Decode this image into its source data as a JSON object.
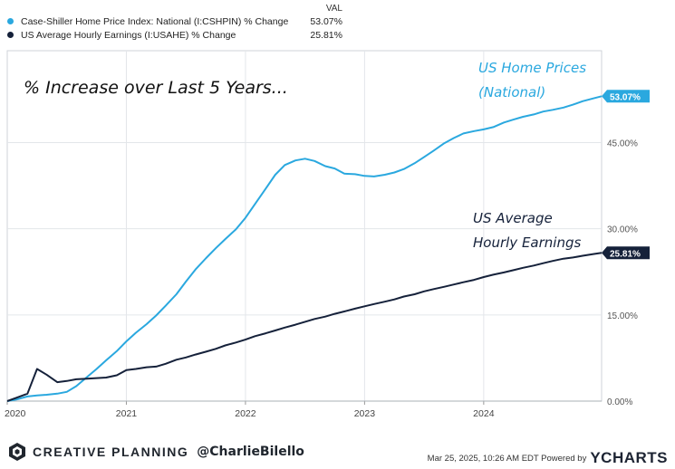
{
  "legend": {
    "header": "VAL",
    "items": [
      {
        "name": "Case-Shiller Home Price Index: National (I:CSHPIN) % Change",
        "value": "53.07%",
        "color": "#2aa8df"
      },
      {
        "name": "US Average Hourly Earnings (I:USAHE) % Change",
        "value": "25.81%",
        "color": "#15213a"
      }
    ]
  },
  "footer": {
    "brand": "CREATIVE PLANNING",
    "handle": "@CharlieBilello",
    "timestamp": "Mar 25, 2025, 10:26 AM EDT Powered by",
    "powered_logo": "YCHARTS"
  },
  "chart_data": {
    "type": "line",
    "title": "% Increase over Last 5 Years...",
    "annotations": [
      {
        "lines": [
          "US Home Prices",
          "(National)"
        ],
        "color": "#2aa8df"
      },
      {
        "lines": [
          "US Average",
          "Hourly Earnings"
        ],
        "color": "#15213a"
      }
    ],
    "x_ticks": [
      "2020",
      "2021",
      "2022",
      "2023",
      "2024"
    ],
    "x_tick_values": [
      2020.0,
      2021.0,
      2022.0,
      2023.0,
      2024.0
    ],
    "xlim": [
      2020.0,
      2024.99
    ],
    "ylim": [
      0,
      61
    ],
    "y_ticks": [
      0,
      15,
      30,
      45
    ],
    "y_tick_labels": [
      "0.00%",
      "15.00%",
      "30.00%",
      "45.00%"
    ],
    "grid": true,
    "series": [
      {
        "name": "US Home Prices (National)",
        "color": "#2aa8df",
        "end_label": "53.07%",
        "points": [
          [
            2020.0,
            0
          ],
          [
            2020.08,
            0.3
          ],
          [
            2020.17,
            0.8
          ],
          [
            2020.25,
            1.0
          ],
          [
            2020.33,
            1.1
          ],
          [
            2020.42,
            1.3
          ],
          [
            2020.5,
            1.6
          ],
          [
            2020.58,
            2.6
          ],
          [
            2020.67,
            4.2
          ],
          [
            2020.75,
            5.6
          ],
          [
            2020.83,
            7.1
          ],
          [
            2020.92,
            8.7
          ],
          [
            2021.0,
            10.4
          ],
          [
            2021.08,
            11.9
          ],
          [
            2021.17,
            13.4
          ],
          [
            2021.25,
            14.9
          ],
          [
            2021.33,
            16.6
          ],
          [
            2021.42,
            18.6
          ],
          [
            2021.5,
            20.8
          ],
          [
            2021.58,
            22.9
          ],
          [
            2021.67,
            24.9
          ],
          [
            2021.75,
            26.6
          ],
          [
            2021.83,
            28.2
          ],
          [
            2021.92,
            29.9
          ],
          [
            2022.0,
            31.9
          ],
          [
            2022.08,
            34.3
          ],
          [
            2022.17,
            37.0
          ],
          [
            2022.25,
            39.4
          ],
          [
            2022.33,
            41.1
          ],
          [
            2022.42,
            41.9
          ],
          [
            2022.5,
            42.2
          ],
          [
            2022.58,
            41.8
          ],
          [
            2022.67,
            40.9
          ],
          [
            2022.75,
            40.5
          ],
          [
            2022.83,
            39.6
          ],
          [
            2022.92,
            39.5
          ],
          [
            2023.0,
            39.2
          ],
          [
            2023.08,
            39.1
          ],
          [
            2023.17,
            39.4
          ],
          [
            2023.25,
            39.8
          ],
          [
            2023.33,
            40.4
          ],
          [
            2023.42,
            41.4
          ],
          [
            2023.5,
            42.5
          ],
          [
            2023.58,
            43.6
          ],
          [
            2023.67,
            44.9
          ],
          [
            2023.75,
            45.8
          ],
          [
            2023.83,
            46.6
          ],
          [
            2023.92,
            47.0
          ],
          [
            2024.0,
            47.3
          ],
          [
            2024.08,
            47.7
          ],
          [
            2024.17,
            48.5
          ],
          [
            2024.25,
            49.0
          ],
          [
            2024.33,
            49.5
          ],
          [
            2024.42,
            49.9
          ],
          [
            2024.5,
            50.4
          ],
          [
            2024.58,
            50.7
          ],
          [
            2024.67,
            51.1
          ],
          [
            2024.75,
            51.6
          ],
          [
            2024.83,
            52.2
          ],
          [
            2024.92,
            52.7
          ],
          [
            2024.99,
            53.07
          ]
        ]
      },
      {
        "name": "US Average Hourly Earnings",
        "color": "#15213a",
        "end_label": "25.81%",
        "points": [
          [
            2020.0,
            0
          ],
          [
            2020.08,
            0.6
          ],
          [
            2020.17,
            1.3
          ],
          [
            2020.25,
            5.6
          ],
          [
            2020.33,
            4.6
          ],
          [
            2020.42,
            3.3
          ],
          [
            2020.5,
            3.5
          ],
          [
            2020.58,
            3.8
          ],
          [
            2020.67,
            3.9
          ],
          [
            2020.75,
            4.0
          ],
          [
            2020.83,
            4.1
          ],
          [
            2020.92,
            4.5
          ],
          [
            2021.0,
            5.4
          ],
          [
            2021.08,
            5.6
          ],
          [
            2021.17,
            5.9
          ],
          [
            2021.25,
            6.0
          ],
          [
            2021.33,
            6.5
          ],
          [
            2021.42,
            7.2
          ],
          [
            2021.5,
            7.6
          ],
          [
            2021.58,
            8.1
          ],
          [
            2021.67,
            8.6
          ],
          [
            2021.75,
            9.1
          ],
          [
            2021.83,
            9.7
          ],
          [
            2021.92,
            10.2
          ],
          [
            2022.0,
            10.7
          ],
          [
            2022.08,
            11.3
          ],
          [
            2022.17,
            11.8
          ],
          [
            2022.25,
            12.3
          ],
          [
            2022.33,
            12.8
          ],
          [
            2022.42,
            13.3
          ],
          [
            2022.5,
            13.8
          ],
          [
            2022.58,
            14.3
          ],
          [
            2022.67,
            14.7
          ],
          [
            2022.75,
            15.2
          ],
          [
            2022.83,
            15.6
          ],
          [
            2022.92,
            16.1
          ],
          [
            2023.0,
            16.5
          ],
          [
            2023.08,
            16.9
          ],
          [
            2023.17,
            17.3
          ],
          [
            2023.25,
            17.7
          ],
          [
            2023.33,
            18.2
          ],
          [
            2023.42,
            18.6
          ],
          [
            2023.5,
            19.1
          ],
          [
            2023.58,
            19.5
          ],
          [
            2023.67,
            19.9
          ],
          [
            2023.75,
            20.3
          ],
          [
            2023.83,
            20.7
          ],
          [
            2023.92,
            21.1
          ],
          [
            2024.0,
            21.6
          ],
          [
            2024.08,
            22.0
          ],
          [
            2024.17,
            22.4
          ],
          [
            2024.25,
            22.8
          ],
          [
            2024.33,
            23.2
          ],
          [
            2024.42,
            23.6
          ],
          [
            2024.5,
            24.0
          ],
          [
            2024.58,
            24.4
          ],
          [
            2024.67,
            24.8
          ],
          [
            2024.75,
            25.0
          ],
          [
            2024.83,
            25.3
          ],
          [
            2024.92,
            25.6
          ],
          [
            2024.99,
            25.81
          ]
        ]
      }
    ]
  }
}
